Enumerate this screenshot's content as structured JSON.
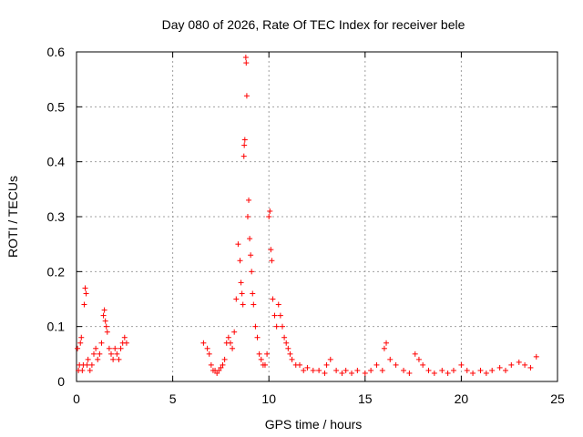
{
  "chart_data": {
    "type": "scatter",
    "title": "Day 080 of 2026, Rate Of TEC Index for receiver bele",
    "xlabel": "GPS time / hours",
    "ylabel": "ROTI / TECUs",
    "xlim": [
      0,
      25
    ],
    "ylim": [
      0,
      0.6
    ],
    "xticks": [
      0,
      5,
      10,
      15,
      20,
      25
    ],
    "xtick_labels": [
      "0",
      "5",
      "10",
      "15",
      "20",
      "25"
    ],
    "yticks": [
      0,
      0.1,
      0.2,
      0.3,
      0.4,
      0.5,
      0.6
    ],
    "ytick_labels": [
      "0",
      "0.1",
      "0.2",
      "0.3",
      "0.4",
      "0.5",
      "0.6"
    ],
    "grid": true,
    "marker": "+",
    "color": "#ff0000",
    "series": [
      {
        "values": [
          [
            0.05,
            0.06
          ],
          [
            0.1,
            0.02
          ],
          [
            0.15,
            0.03
          ],
          [
            0.2,
            0.07
          ],
          [
            0.25,
            0.08
          ],
          [
            0.3,
            0.02
          ],
          [
            0.35,
            0.03
          ],
          [
            0.4,
            0.14
          ],
          [
            0.45,
            0.17
          ],
          [
            0.5,
            0.16
          ],
          [
            0.55,
            0.03
          ],
          [
            0.6,
            0.04
          ],
          [
            0.7,
            0.02
          ],
          [
            0.8,
            0.03
          ],
          [
            0.9,
            0.05
          ],
          [
            1.0,
            0.06
          ],
          [
            1.1,
            0.04
          ],
          [
            1.2,
            0.05
          ],
          [
            1.3,
            0.07
          ],
          [
            1.4,
            0.12
          ],
          [
            1.45,
            0.13
          ],
          [
            1.5,
            0.11
          ],
          [
            1.55,
            0.1
          ],
          [
            1.6,
            0.09
          ],
          [
            1.7,
            0.06
          ],
          [
            1.8,
            0.05
          ],
          [
            1.9,
            0.04
          ],
          [
            2.0,
            0.06
          ],
          [
            2.1,
            0.05
          ],
          [
            2.2,
            0.04
          ],
          [
            2.3,
            0.06
          ],
          [
            2.4,
            0.07
          ],
          [
            2.5,
            0.08
          ],
          [
            2.6,
            0.07
          ],
          [
            6.6,
            0.07
          ],
          [
            6.8,
            0.06
          ],
          [
            6.9,
            0.05
          ],
          [
            7.0,
            0.03
          ],
          [
            7.1,
            0.02
          ],
          [
            7.2,
            0.02
          ],
          [
            7.3,
            0.015
          ],
          [
            7.4,
            0.02
          ],
          [
            7.5,
            0.025
          ],
          [
            7.6,
            0.03
          ],
          [
            7.7,
            0.04
          ],
          [
            7.8,
            0.07
          ],
          [
            7.9,
            0.08
          ],
          [
            8.0,
            0.07
          ],
          [
            8.1,
            0.06
          ],
          [
            8.2,
            0.09
          ],
          [
            8.3,
            0.15
          ],
          [
            8.4,
            0.25
          ],
          [
            8.5,
            0.22
          ],
          [
            8.55,
            0.18
          ],
          [
            8.6,
            0.16
          ],
          [
            8.65,
            0.14
          ],
          [
            8.7,
            0.41
          ],
          [
            8.72,
            0.43
          ],
          [
            8.75,
            0.44
          ],
          [
            8.8,
            0.59
          ],
          [
            8.82,
            0.58
          ],
          [
            8.85,
            0.52
          ],
          [
            8.9,
            0.3
          ],
          [
            8.95,
            0.33
          ],
          [
            9.0,
            0.26
          ],
          [
            9.05,
            0.23
          ],
          [
            9.1,
            0.2
          ],
          [
            9.15,
            0.16
          ],
          [
            9.2,
            0.14
          ],
          [
            9.3,
            0.1
          ],
          [
            9.4,
            0.08
          ],
          [
            9.5,
            0.05
          ],
          [
            9.6,
            0.04
          ],
          [
            9.7,
            0.03
          ],
          [
            9.8,
            0.03
          ],
          [
            9.9,
            0.05
          ],
          [
            10.0,
            0.3
          ],
          [
            10.05,
            0.31
          ],
          [
            10.1,
            0.24
          ],
          [
            10.15,
            0.22
          ],
          [
            10.2,
            0.15
          ],
          [
            10.3,
            0.12
          ],
          [
            10.4,
            0.1
          ],
          [
            10.5,
            0.14
          ],
          [
            10.6,
            0.12
          ],
          [
            10.7,
            0.1
          ],
          [
            10.8,
            0.08
          ],
          [
            10.9,
            0.07
          ],
          [
            11.0,
            0.06
          ],
          [
            11.1,
            0.05
          ],
          [
            11.2,
            0.04
          ],
          [
            11.4,
            0.03
          ],
          [
            11.6,
            0.03
          ],
          [
            11.8,
            0.02
          ],
          [
            12.0,
            0.025
          ],
          [
            12.3,
            0.02
          ],
          [
            12.6,
            0.02
          ],
          [
            12.9,
            0.015
          ],
          [
            13.0,
            0.03
          ],
          [
            13.2,
            0.04
          ],
          [
            13.5,
            0.02
          ],
          [
            13.8,
            0.015
          ],
          [
            14.0,
            0.02
          ],
          [
            14.3,
            0.015
          ],
          [
            14.6,
            0.02
          ],
          [
            15.0,
            0.015
          ],
          [
            15.3,
            0.02
          ],
          [
            15.6,
            0.03
          ],
          [
            15.9,
            0.02
          ],
          [
            16.0,
            0.06
          ],
          [
            16.1,
            0.07
          ],
          [
            16.3,
            0.04
          ],
          [
            16.6,
            0.03
          ],
          [
            17.0,
            0.02
          ],
          [
            17.3,
            0.015
          ],
          [
            17.6,
            0.05
          ],
          [
            17.8,
            0.04
          ],
          [
            18.0,
            0.03
          ],
          [
            18.3,
            0.02
          ],
          [
            18.6,
            0.015
          ],
          [
            19.0,
            0.02
          ],
          [
            19.3,
            0.015
          ],
          [
            19.6,
            0.02
          ],
          [
            20.0,
            0.03
          ],
          [
            20.3,
            0.02
          ],
          [
            20.6,
            0.015
          ],
          [
            21.0,
            0.02
          ],
          [
            21.3,
            0.015
          ],
          [
            21.6,
            0.02
          ],
          [
            22.0,
            0.025
          ],
          [
            22.3,
            0.02
          ],
          [
            22.6,
            0.03
          ],
          [
            23.0,
            0.035
          ],
          [
            23.3,
            0.03
          ],
          [
            23.6,
            0.025
          ],
          [
            23.9,
            0.045
          ]
        ]
      }
    ]
  }
}
